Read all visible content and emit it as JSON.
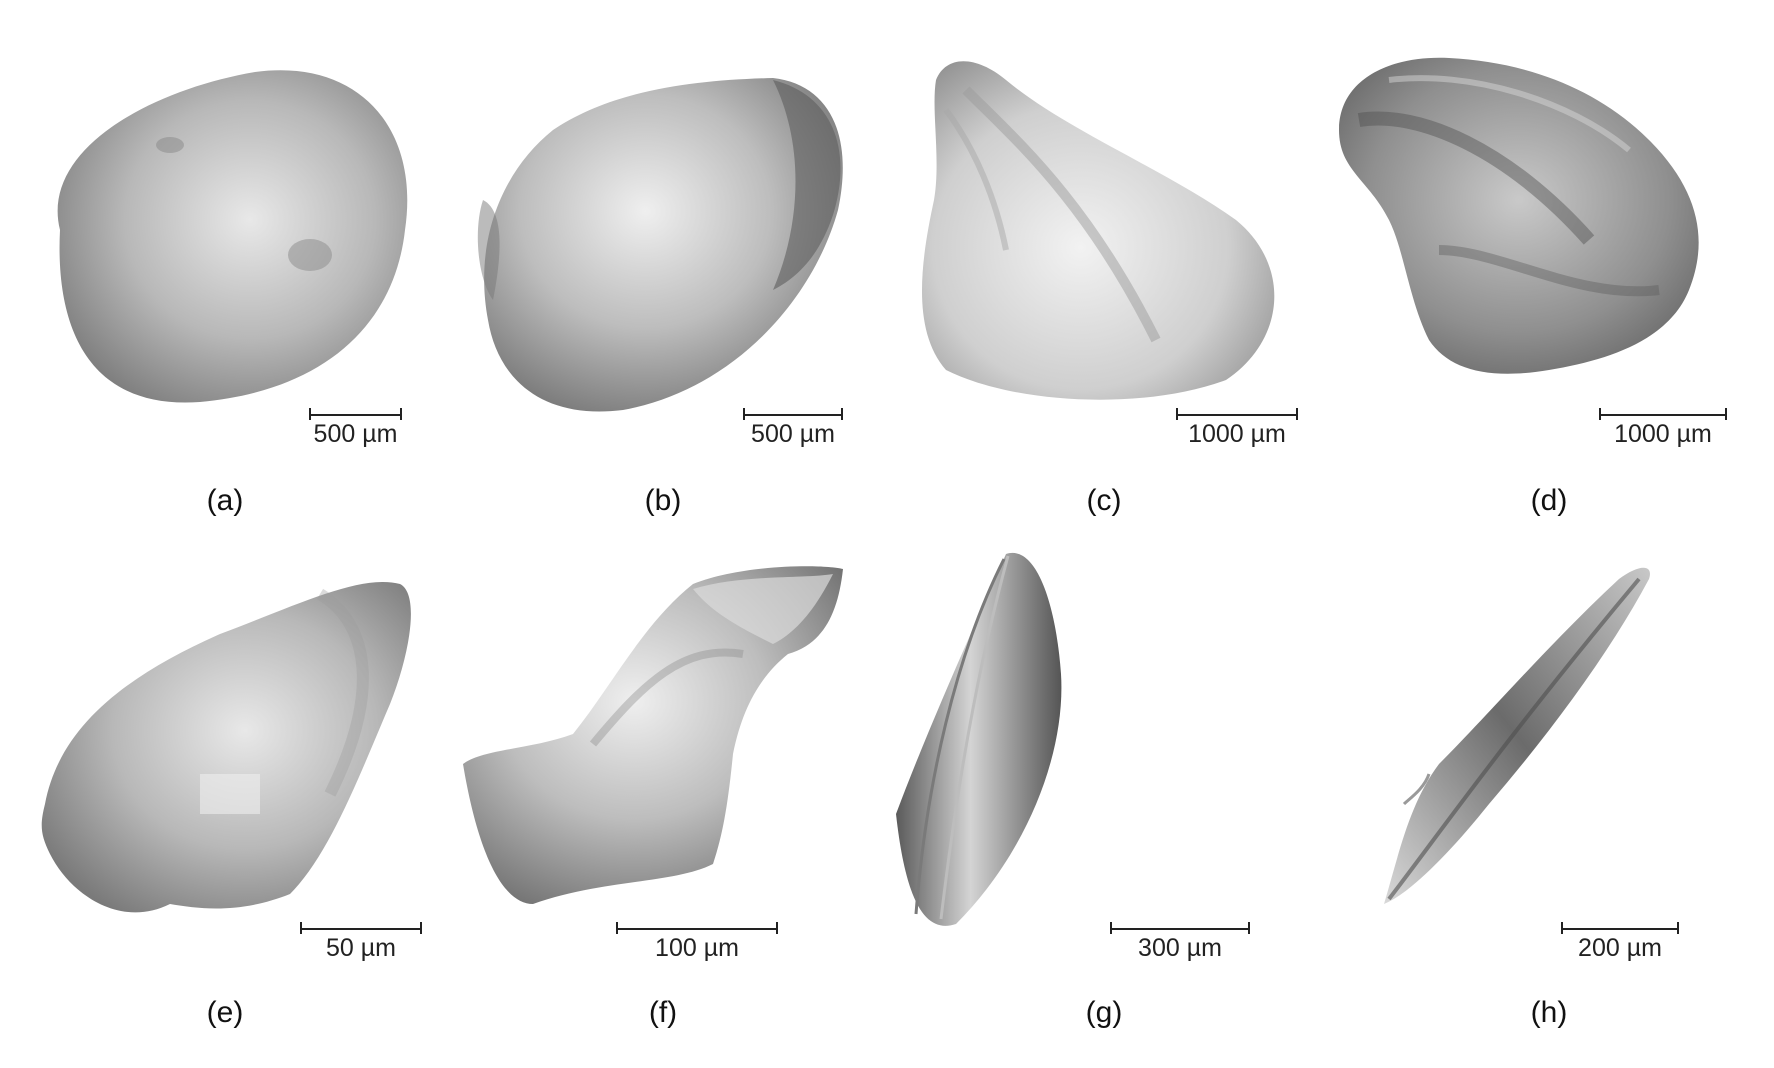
{
  "panels": [
    {
      "label": "(a)",
      "scale": "500 µm"
    },
    {
      "label": "(b)",
      "scale": "500 µm"
    },
    {
      "label": "(c)",
      "scale": "1000 µm"
    },
    {
      "label": "(d)",
      "scale": "1000 µm"
    },
    {
      "label": "(e)",
      "scale": "50 µm"
    },
    {
      "label": "(f)",
      "scale": "100 µm"
    },
    {
      "label": "(g)",
      "scale": "300 µm"
    },
    {
      "label": "(h)",
      "scale": "200 µm"
    }
  ]
}
